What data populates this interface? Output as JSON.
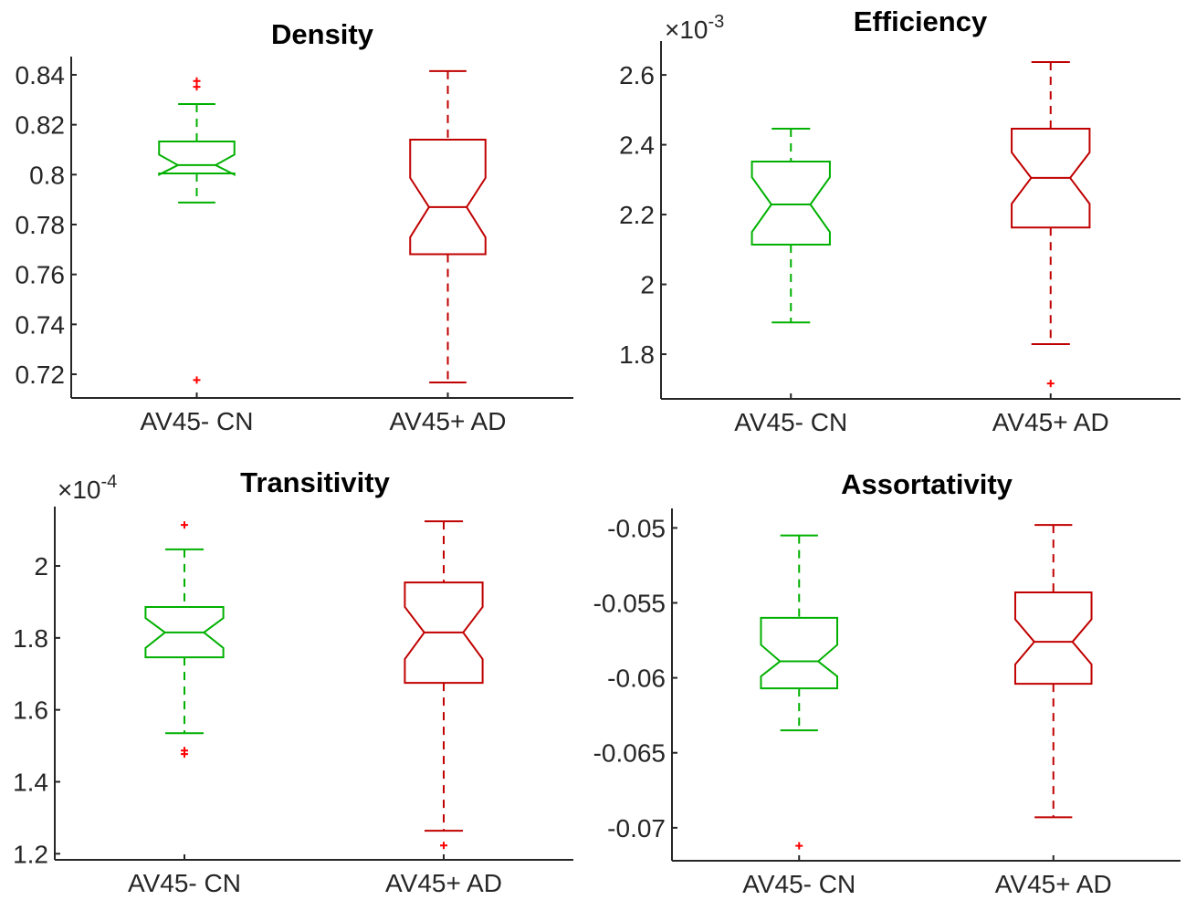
{
  "chart_data": [
    {
      "type": "boxplot",
      "title": "Density",
      "exponent": null,
      "categories": [
        "AV45- CN",
        "AV45+ AD"
      ],
      "ylim": [
        0.7105,
        0.8473
      ],
      "yticks": [
        0.72,
        0.74,
        0.76,
        0.78,
        0.8,
        0.82,
        0.84
      ],
      "ytick_labels": [
        "0.72",
        "0.74",
        "0.76",
        "0.78",
        "0.8",
        "0.82",
        "0.84"
      ],
      "series": [
        {
          "name": "AV45- CN",
          "color": "#00b000",
          "whisker_low": 0.7888,
          "q1": 0.8005,
          "notch_low": 0.8,
          "median": 0.8038,
          "notch_high": 0.808,
          "q3": 0.8133,
          "whisker_high": 0.8283,
          "outliers": [
            0.8375,
            0.8352,
            0.7177
          ]
        },
        {
          "name": "AV45+ AD",
          "color": "#c00000",
          "whisker_low": 0.7167,
          "q1": 0.7681,
          "notch_low": 0.7749,
          "median": 0.787,
          "notch_high": 0.7987,
          "q3": 0.814,
          "whisker_high": 0.8415,
          "outliers": []
        }
      ]
    },
    {
      "type": "boxplot",
      "title": "Efficiency",
      "exponent": "-3",
      "categories": [
        "AV45- CN",
        "AV45+ AD"
      ],
      "ylim": [
        1.672,
        2.697
      ],
      "yticks": [
        1.8,
        2.0,
        2.2,
        2.4,
        2.6
      ],
      "ytick_labels": [
        "1.8",
        "2",
        "2.2",
        "2.4",
        "2.6"
      ],
      "series": [
        {
          "name": "AV45- CN",
          "color": "#00b000",
          "whisker_low": 1.891,
          "q1": 2.114,
          "notch_low": 2.15,
          "median": 2.229,
          "notch_high": 2.307,
          "q3": 2.352,
          "whisker_high": 2.446,
          "outliers": []
        },
        {
          "name": "AV45+ AD",
          "color": "#c00000",
          "whisker_low": 1.829,
          "q1": 2.163,
          "notch_low": 2.231,
          "median": 2.305,
          "notch_high": 2.378,
          "q3": 2.446,
          "whisker_high": 2.637,
          "outliers": [
            1.716
          ]
        }
      ]
    },
    {
      "type": "boxplot",
      "title": "Transitivity",
      "exponent": "-4",
      "categories": [
        "AV45- CN",
        "AV45+ AD"
      ],
      "ylim": [
        1.183,
        2.165
      ],
      "yticks": [
        1.2,
        1.4,
        1.6,
        1.8,
        2.0
      ],
      "ytick_labels": [
        "1.2",
        "1.4",
        "1.6",
        "1.8",
        "2"
      ],
      "series": [
        {
          "name": "AV45- CN",
          "color": "#00b000",
          "whisker_low": 1.535,
          "q1": 1.746,
          "notch_low": 1.772,
          "median": 1.815,
          "notch_high": 1.855,
          "q3": 1.886,
          "whisker_high": 2.046,
          "outliers": [
            2.114,
            1.487,
            1.477
          ]
        },
        {
          "name": "AV45+ AD",
          "color": "#c00000",
          "whisker_low": 1.264,
          "q1": 1.675,
          "notch_low": 1.741,
          "median": 1.815,
          "notch_high": 1.886,
          "q3": 1.954,
          "whisker_high": 2.124,
          "outliers": [
            1.223
          ]
        }
      ]
    },
    {
      "type": "boxplot",
      "title": "Assortativity",
      "exponent": null,
      "categories": [
        "AV45- CN",
        "AV45+ AD"
      ],
      "ylim": [
        -0.0722,
        -0.0487
      ],
      "yticks": [
        -0.07,
        -0.065,
        -0.06,
        -0.055,
        -0.05
      ],
      "ytick_labels": [
        "-0.07",
        "-0.065",
        "-0.06",
        "-0.055",
        "-0.05"
      ],
      "series": [
        {
          "name": "AV45- CN",
          "color": "#00b000",
          "whisker_low": -0.0635,
          "q1": -0.0607,
          "notch_low": -0.0599,
          "median": -0.0589,
          "notch_high": -0.0578,
          "q3": -0.056,
          "whisker_high": -0.0505,
          "outliers": [
            -0.0712
          ]
        },
        {
          "name": "AV45+ AD",
          "color": "#c00000",
          "whisker_low": -0.0693,
          "q1": -0.0604,
          "notch_low": -0.0591,
          "median": -0.0576,
          "notch_high": -0.0561,
          "q3": -0.0543,
          "whisker_high": -0.0498,
          "outliers": []
        }
      ]
    }
  ],
  "outlier_color": "#ff0000"
}
